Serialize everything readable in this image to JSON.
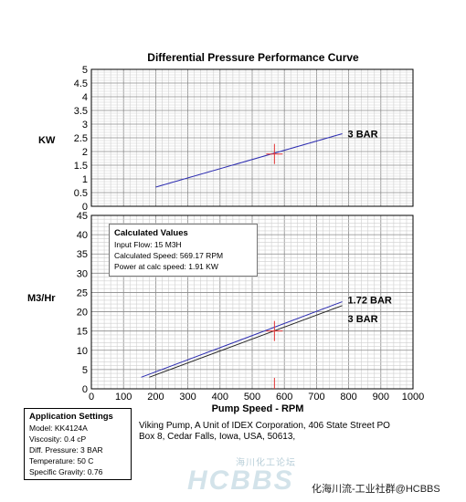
{
  "chart_data": {
    "type": "line",
    "title": "Differential Pressure Performance Curve",
    "xlabel": "Pump Speed - RPM",
    "xlim": [
      0,
      1000
    ],
    "x_ticks": [
      "0",
      "100",
      "200",
      "300",
      "400",
      "500",
      "600",
      "700",
      "800",
      "900",
      "1000"
    ],
    "grid": true,
    "panels": [
      {
        "ylabel": "KW",
        "ylim": [
          0,
          5
        ],
        "y_ticks": [
          "5",
          "4.5",
          "4",
          "3.5",
          "3",
          "2.5",
          "2",
          "1.5",
          "1",
          "0.5",
          "0"
        ],
        "series": [
          {
            "name": "3 BAR",
            "color": "#2b2bb0",
            "x": [
              200,
              780
            ],
            "y": [
              0.7,
              2.65
            ]
          }
        ],
        "marker": {
          "x": 569.17,
          "y": 1.91,
          "color": "#e03030"
        }
      },
      {
        "ylabel": "M3/Hr",
        "ylim": [
          0,
          45
        ],
        "y_ticks": [
          "45",
          "40",
          "35",
          "30",
          "25",
          "20",
          "15",
          "10",
          "5",
          "0"
        ],
        "series": [
          {
            "name": "1.72 BAR",
            "color": "#2b2bb0",
            "x": [
              155,
              780
            ],
            "y": [
              3,
              22.6
            ]
          },
          {
            "name": "3 BAR",
            "color": "#222222",
            "x": [
              180,
              780
            ],
            "y": [
              3,
              21.6
            ]
          }
        ],
        "marker": {
          "x": 569.17,
          "y": 15,
          "color": "#e03030"
        }
      }
    ]
  },
  "calculated_values": {
    "heading": "Calculated Values",
    "lines": [
      "Input Flow: 15 M3H",
      "Calculated Speed: 569.17 RPM",
      "Power at calc speed: 1.91 KW"
    ]
  },
  "application_settings": {
    "heading": "Application Settings",
    "lines": [
      "Model: KK4124A",
      "Viscosity: 0.4 cP",
      "Diff. Pressure: 3 BAR",
      "Temperature: 50 C",
      "Specific Gravity: 0.76"
    ]
  },
  "company_info": [
    "Viking Pump, A Unit of IDEX Corporation, 406 State Street PO",
    "Box 8, Cedar Falls, Iowa, USA, 50613,"
  ],
  "watermark": {
    "cn": "海川化工论坛",
    "en": "HCBBS"
  },
  "footer": "化海川流-工业社群@HCBBS"
}
